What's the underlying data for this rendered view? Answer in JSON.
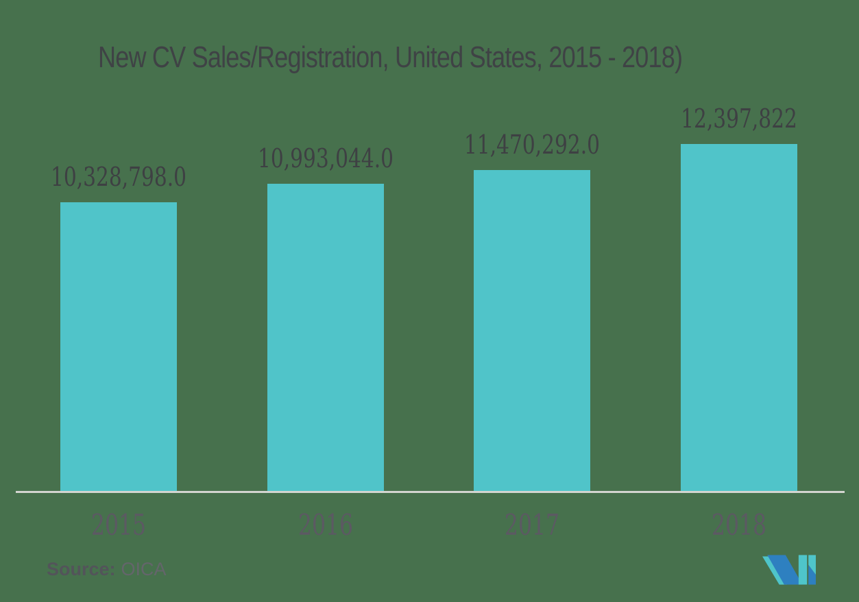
{
  "chart": {
    "source_label": "Source:",
    "source_value": "OICA"
  },
  "chart_data": {
    "type": "bar",
    "title": "New CV Sales/Registration, United States, 2015 - 2018)",
    "categories": [
      "2015",
      "2016",
      "2017",
      "2018"
    ],
    "values": [
      10328798.0,
      10993044.0,
      11470292.0,
      12397822
    ],
    "value_labels": [
      "10,328,798.0",
      "10,993,044.0",
      "11,470,292.0",
      "12,397,822"
    ],
    "xlabel": "",
    "ylabel": "",
    "ylim": [
      0,
      17000000
    ],
    "grid": false,
    "legend": false,
    "bar_color": "#50C4C9",
    "background_color": "#47714D",
    "text_color": "#3E4043",
    "tick_label_color": "#5C5963",
    "axis_line_color": "#D3D5D0",
    "source": "OICA"
  },
  "logo": {
    "name": "mordor-intelligence-logo",
    "teal": "#4FC5CA",
    "blue": "#2E80C0"
  }
}
